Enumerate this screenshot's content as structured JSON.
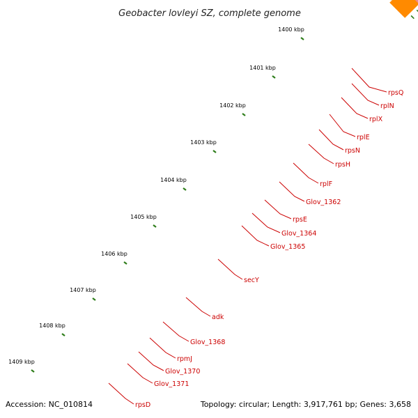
{
  "title": "Geobacter lovleyi SZ, complete genome",
  "accession": "Accession: NC_010814",
  "summary": "Topology: circular; Length: 3,917,761 bp; Genes: 3,658",
  "kbp_labels": [
    "1400 kbp",
    "1401 kbp",
    "1402 kbp",
    "1403 kbp",
    "1404 kbp",
    "1405 kbp",
    "1406 kbp",
    "1407 kbp",
    "1408 kbp",
    "1409 kbp"
  ],
  "gene_labels": [
    "rpsQ",
    "rplN",
    "rplX",
    "rplE",
    "rpsN",
    "rpsH",
    "rplF",
    "Glov_1362",
    "rpsE",
    "Glov_1364",
    "Glov_1365",
    "secY",
    "adk",
    "Glov_1368",
    "rpmJ",
    "Glov_1370",
    "Glov_1371",
    "rpsD"
  ],
  "colors": {
    "backbone": "#9a9a9a",
    "cds_forward": "#ff0000",
    "cds_reverse": "#f08a8a",
    "secY": "#a6f03c",
    "adk": "#22aaff",
    "rpsD": "#ff8a00",
    "gene_label": "#cc0000",
    "tick_major": "#2e7d1a",
    "tick_minor": "#3a8a26"
  }
}
